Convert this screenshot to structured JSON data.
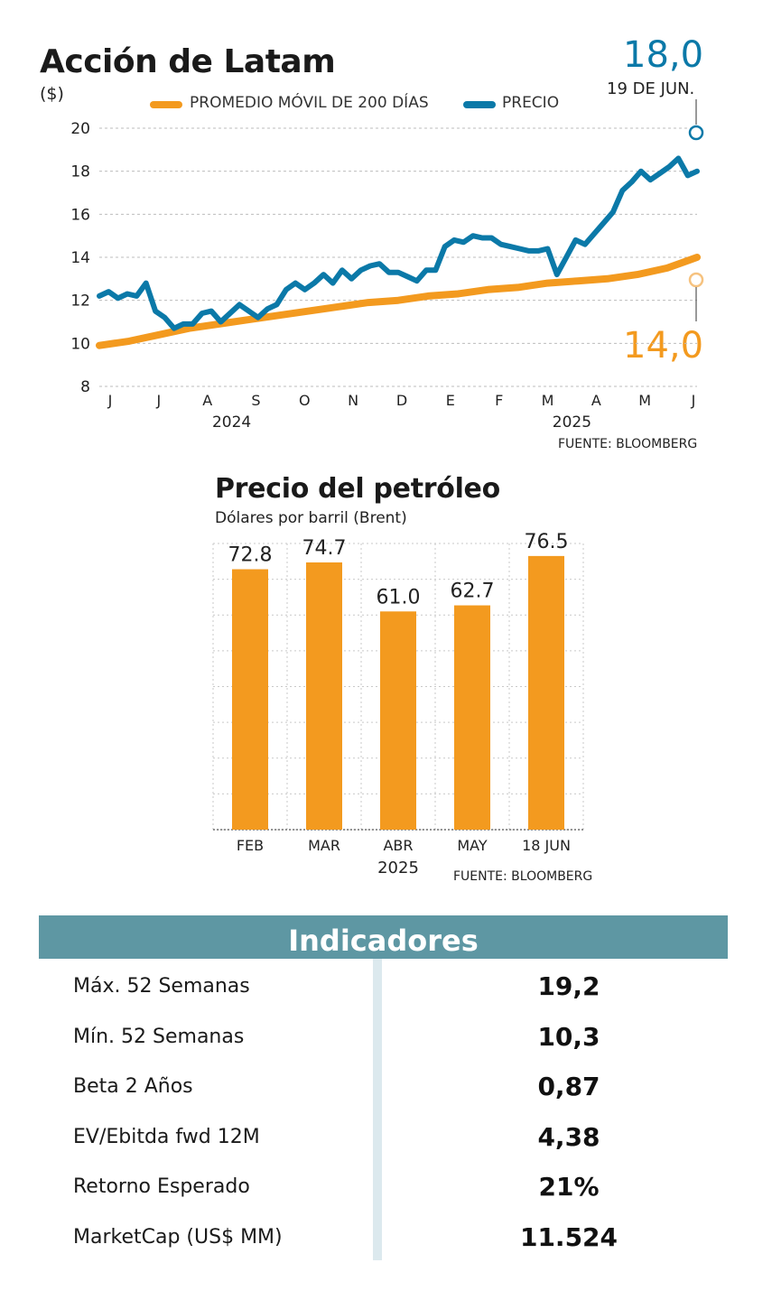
{
  "chart_data": [
    {
      "type": "line",
      "title": "Acción de Latam",
      "ylabel": "($)",
      "ylim": [
        8,
        20
      ],
      "yticks": [
        8,
        10,
        12,
        14,
        16,
        18,
        20
      ],
      "x_month_labels": [
        "J",
        "J",
        "A",
        "S",
        "O",
        "N",
        "D",
        "E",
        "F",
        "M",
        "A",
        "M",
        "J"
      ],
      "x_year_labels": [
        "2024",
        "2025"
      ],
      "grid": true,
      "legend_position": "top",
      "series": [
        {
          "name": "PROMEDIO MÓVIL DE 200 DÍAS",
          "color": "#f39a1f",
          "values": [
            9.9,
            10.1,
            10.4,
            10.7,
            10.9,
            11.1,
            11.3,
            11.5,
            11.7,
            11.9,
            12.0,
            12.2,
            12.3,
            12.5,
            12.6,
            12.8,
            12.9,
            13.0,
            13.2,
            13.5,
            14.0
          ]
        },
        {
          "name": "PRECIO",
          "color": "#0b79a8",
          "values": [
            12.2,
            12.4,
            12.1,
            12.3,
            12.2,
            12.8,
            11.5,
            11.2,
            10.7,
            10.9,
            10.9,
            11.4,
            11.5,
            11.0,
            11.4,
            11.8,
            11.5,
            11.2,
            11.6,
            11.8,
            12.5,
            12.8,
            12.5,
            12.8,
            13.2,
            12.8,
            13.4,
            13.0,
            13.4,
            13.6,
            13.7,
            13.3,
            13.3,
            13.1,
            12.9,
            13.4,
            13.4,
            14.5,
            14.8,
            14.7,
            15.0,
            14.9,
            14.9,
            14.6,
            14.5,
            14.4,
            14.3,
            14.3,
            14.4,
            13.2,
            14.0,
            14.8,
            14.6,
            15.1,
            15.6,
            16.1,
            17.1,
            17.5,
            18.0,
            17.6,
            17.9,
            18.2,
            18.6,
            17.8,
            18.0
          ]
        }
      ],
      "annotations": [
        {
          "text": "18,0",
          "color": "#0b79a8"
        },
        {
          "text": "19 DE JUN."
        },
        {
          "text": "14,0",
          "color": "#f39a1f"
        }
      ],
      "source": "FUENTE: BLOOMBERG"
    },
    {
      "type": "bar",
      "title": "Precio del petróleo",
      "subtitle": "Dólares por barril (Brent)",
      "categories": [
        "FEB",
        "MAR",
        "ABR",
        "MAY",
        "18 JUN"
      ],
      "values": [
        72.8,
        74.7,
        61.0,
        62.7,
        76.5
      ],
      "value_labels": [
        "72.8",
        "74.7",
        "61.0",
        "62.7",
        "76.5"
      ],
      "xlabel_year": "2025",
      "ylim": [
        0,
        80
      ],
      "grid": true,
      "color": "#f39a1f",
      "source": "FUENTE: BLOOMBERG"
    }
  ],
  "indicators": {
    "title": "Indicadores",
    "rows": [
      {
        "label": "Máx. 52 Semanas",
        "value": "19,2"
      },
      {
        "label": "Mín. 52 Semanas",
        "value": "10,3"
      },
      {
        "label": "Beta 2 Años",
        "value": "0,87"
      },
      {
        "label": "EV/Ebitda fwd 12M",
        "value": "4,38"
      },
      {
        "label": "Retorno Esperado",
        "value": "21%"
      },
      {
        "label": "MarketCap (US$ MM)",
        "value": "11.524"
      }
    ]
  },
  "colors": {
    "orange": "#f39a1f",
    "blue": "#0b79a8",
    "teal_header": "#5e97a3",
    "divider": "#dce9ee"
  }
}
